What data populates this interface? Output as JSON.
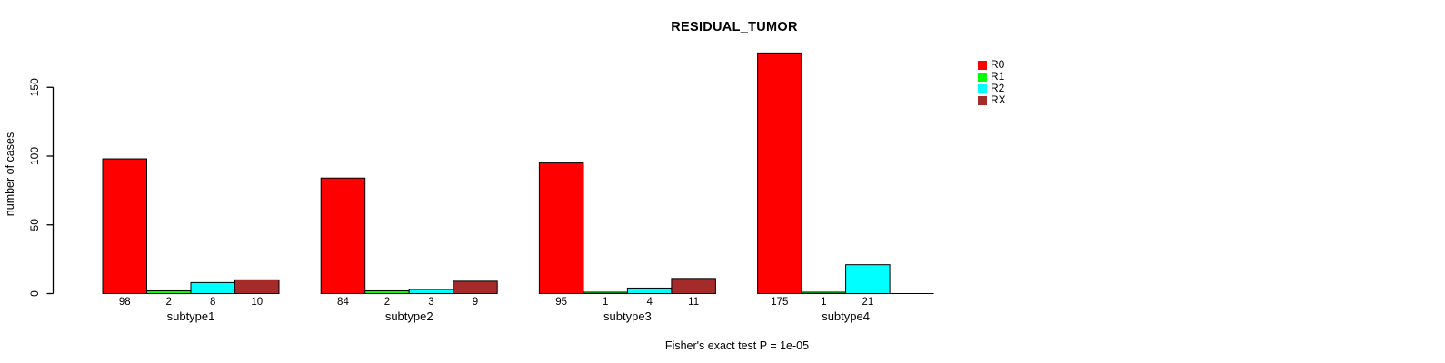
{
  "chart_data": {
    "type": "bar",
    "title": "RESIDUAL_TUMOR",
    "xlabel": "",
    "ylabel": "number of cases",
    "categories": [
      "subtype1",
      "subtype2",
      "subtype3",
      "subtype4"
    ],
    "series": [
      {
        "name": "R0",
        "color": "#FF0000",
        "values": [
          98,
          84,
          95,
          175
        ]
      },
      {
        "name": "R1",
        "color": "#00FF00",
        "values": [
          2,
          2,
          1,
          1
        ]
      },
      {
        "name": "R2",
        "color": "#00FFFF",
        "values": [
          8,
          3,
          4,
          21
        ]
      },
      {
        "name": "RX",
        "color": "#A52A2A",
        "values": [
          10,
          9,
          11,
          0
        ]
      }
    ],
    "bar_labels": [
      [
        "98",
        "2",
        "8",
        "10"
      ],
      [
        "84",
        "2",
        "3",
        "9"
      ],
      [
        "95",
        "1",
        "4",
        "11"
      ],
      [
        "175",
        "1",
        "21",
        ""
      ]
    ],
    "yticks": [
      0,
      50,
      100,
      150
    ],
    "ylim": [
      0,
      178
    ],
    "grid": false,
    "legend_position": "right-of-plot",
    "annotation": "Fisher's exact test P = 1e-05",
    "axis_color": "#000000",
    "bar_border_color": "#000000",
    "background_color": "#FFFFFF"
  }
}
